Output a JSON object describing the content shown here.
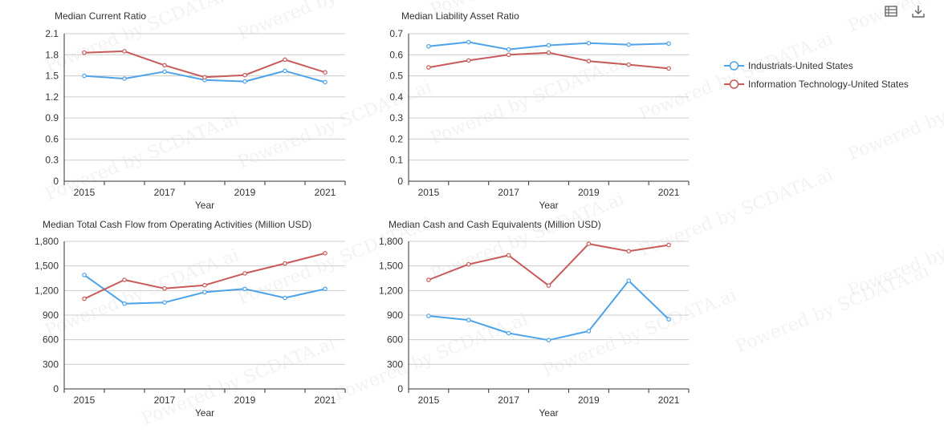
{
  "legend": {
    "items": [
      {
        "label": "Industrials-United States",
        "color": "#4da3e9"
      },
      {
        "label": "Information Technology-United States",
        "color": "#c85a5a"
      }
    ]
  },
  "toolbar": {
    "icons": [
      "data-view-icon",
      "download-icon"
    ]
  },
  "watermark": "Powered by SCDATA.ai",
  "chart_data": [
    {
      "type": "line",
      "title": "Median Current Ratio",
      "xlabel": "Year",
      "x": [
        2015,
        2016,
        2017,
        2018,
        2019,
        2020,
        2021
      ],
      "xticklabels": [
        "2015",
        "",
        "2017",
        "",
        "2019",
        "",
        "2021"
      ],
      "ylim": [
        0,
        2.1
      ],
      "yticks": [
        "0",
        "0.3",
        "0.6",
        "0.9",
        "1.2",
        "1.5",
        "1.8",
        "2.1"
      ],
      "series": [
        {
          "name": "Industrials-United States",
          "values": [
            1.5,
            1.46,
            1.56,
            1.44,
            1.42,
            1.57,
            1.41
          ]
        },
        {
          "name": "Information Technology-United States",
          "values": [
            1.83,
            1.85,
            1.65,
            1.48,
            1.51,
            1.73,
            1.55
          ]
        }
      ]
    },
    {
      "type": "line",
      "title": "Median Liability Asset Ratio",
      "xlabel": "Year",
      "x": [
        2015,
        2016,
        2017,
        2018,
        2019,
        2020,
        2021
      ],
      "xticklabels": [
        "2015",
        "",
        "2017",
        "",
        "2019",
        "",
        "2021"
      ],
      "ylim": [
        0,
        0.7
      ],
      "yticks": [
        "0",
        "0.1",
        "0.2",
        "0.3",
        "0.4",
        "0.5",
        "0.6",
        "0.7"
      ],
      "series": [
        {
          "name": "Industrials-United States",
          "values": [
            0.64,
            0.66,
            0.625,
            0.645,
            0.655,
            0.648,
            0.653
          ]
        },
        {
          "name": "Information Technology-United States",
          "values": [
            0.54,
            0.573,
            0.6,
            0.61,
            0.57,
            0.553,
            0.535
          ]
        }
      ]
    },
    {
      "type": "line",
      "title": "Median Total Cash Flow from Operating Activities (Million USD)",
      "xlabel": "Year",
      "x": [
        2015,
        2016,
        2017,
        2018,
        2019,
        2020,
        2021
      ],
      "xticklabels": [
        "2015",
        "",
        "2017",
        "",
        "2019",
        "",
        "2021"
      ],
      "ylim": [
        0,
        1800
      ],
      "yticks": [
        "0",
        "300",
        "600",
        "900",
        "1,200",
        "1,500",
        "1,800"
      ],
      "series": [
        {
          "name": "Industrials-United States",
          "values": [
            1390,
            1040,
            1055,
            1180,
            1220,
            1110,
            1220
          ]
        },
        {
          "name": "Information Technology-United States",
          "values": [
            1100,
            1330,
            1225,
            1265,
            1410,
            1530,
            1655
          ]
        }
      ]
    },
    {
      "type": "line",
      "title": "Median Cash and Cash Equivalents (Million USD)",
      "xlabel": "Year",
      "x": [
        2015,
        2016,
        2017,
        2018,
        2019,
        2020,
        2021
      ],
      "xticklabels": [
        "2015",
        "",
        "2017",
        "",
        "2019",
        "",
        "2021"
      ],
      "ylim": [
        0,
        1800
      ],
      "yticks": [
        "0",
        "300",
        "600",
        "900",
        "1,200",
        "1,500",
        "1,800"
      ],
      "series": [
        {
          "name": "Industrials-United States",
          "values": [
            890,
            840,
            680,
            595,
            705,
            1320,
            850
          ]
        },
        {
          "name": "Information Technology-United States",
          "values": [
            1330,
            1520,
            1630,
            1260,
            1770,
            1680,
            1755
          ]
        }
      ]
    }
  ]
}
